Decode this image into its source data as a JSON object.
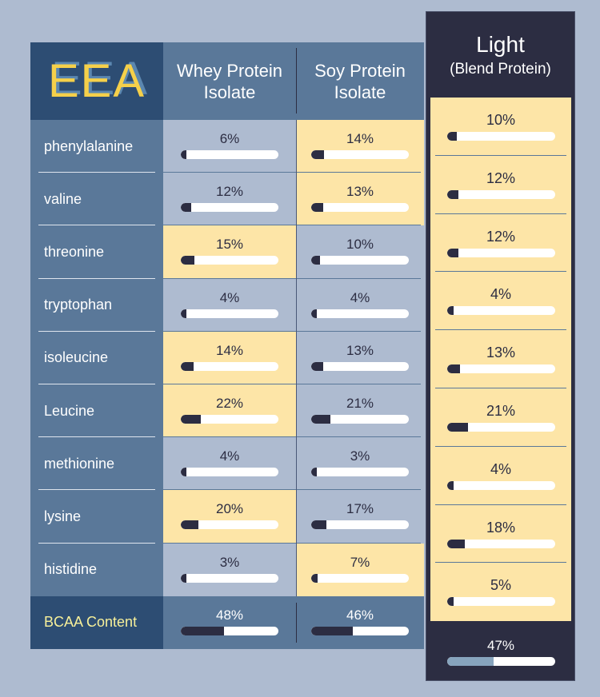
{
  "chart_data": {
    "type": "table",
    "title": "EEA",
    "columns": [
      "Whey Protein Isolate",
      "Soy Protein Isolate",
      "Light"
    ],
    "light_subtitle": "(Blend Protein)",
    "rows": [
      {
        "name": "phenylalanine",
        "values": [
          6,
          14,
          10
        ],
        "highlight": [
          false,
          true
        ]
      },
      {
        "name": "valine",
        "values": [
          12,
          13,
          12
        ],
        "highlight": [
          false,
          true
        ]
      },
      {
        "name": "threonine",
        "values": [
          15,
          10,
          12
        ],
        "highlight": [
          true,
          false
        ]
      },
      {
        "name": "tryptophan",
        "values": [
          4,
          4,
          4
        ],
        "highlight": [
          false,
          false
        ]
      },
      {
        "name": "isoleucine",
        "values": [
          14,
          13,
          13
        ],
        "highlight": [
          true,
          false
        ]
      },
      {
        "name": "Leucine",
        "values": [
          22,
          21,
          21
        ],
        "highlight": [
          true,
          false
        ]
      },
      {
        "name": "methionine",
        "values": [
          4,
          3,
          4
        ],
        "highlight": [
          false,
          false
        ]
      },
      {
        "name": "lysine",
        "values": [
          20,
          17,
          18
        ],
        "highlight": [
          true,
          false
        ]
      },
      {
        "name": "histidine",
        "values": [
          3,
          7,
          5
        ],
        "highlight": [
          false,
          true
        ]
      }
    ],
    "bcaa": {
      "name": "BCAA Content",
      "values": [
        48,
        46,
        47
      ]
    },
    "unit": "%"
  },
  "colors": {
    "yellow": "#fde5a7",
    "gray": "#aebbd0",
    "dark": "#2c2d42",
    "light_bcaa_fill": "#87a4bd"
  }
}
